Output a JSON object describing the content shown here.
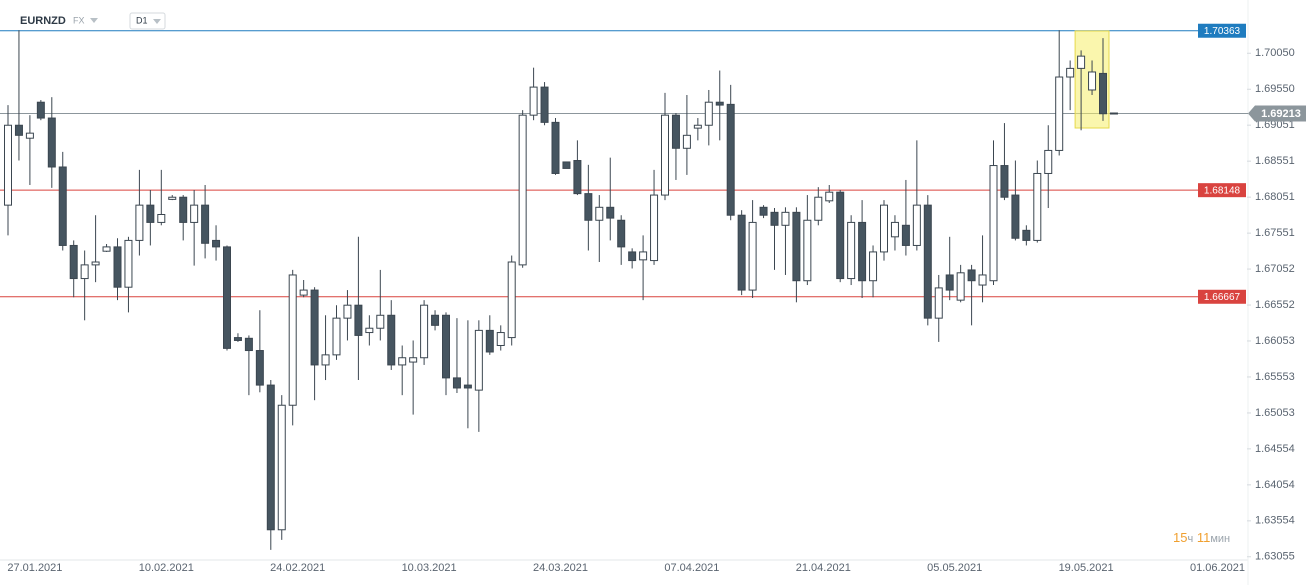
{
  "header": {
    "symbol": "EURNZD",
    "market": "FX",
    "timeframe": "D1"
  },
  "timer": {
    "hours": "15",
    "hours_unit": "ч",
    "minutes": "11",
    "minutes_unit": "мин"
  },
  "chart_data": {
    "type": "candlestick",
    "categories": [
      null,
      null,
      "27.01.2021",
      null,
      null,
      null,
      null,
      null,
      null,
      null,
      null,
      null,
      null,
      null,
      "10.02.2021",
      null,
      null,
      null,
      null,
      null,
      null,
      null,
      null,
      null,
      null,
      null,
      "24.02.2021",
      null,
      null,
      null,
      null,
      null,
      null,
      null,
      null,
      null,
      null,
      null,
      "10.03.2021",
      null,
      null,
      null,
      null,
      null,
      null,
      null,
      null,
      null,
      null,
      null,
      "24.03.2021",
      null,
      null,
      null,
      null,
      null,
      null,
      null,
      null,
      null,
      null,
      null,
      "07.04.2021",
      null,
      null,
      null,
      null,
      null,
      null,
      null,
      null,
      null,
      null,
      null,
      "21.04.2021",
      null,
      null,
      null,
      null,
      null,
      null,
      null,
      null,
      null,
      null,
      null,
      "05.05.2021",
      null,
      null,
      null,
      null,
      null,
      null,
      null,
      null,
      null,
      null,
      null,
      "19.05.2021",
      null,
      null,
      null,
      null,
      null,
      null,
      null,
      null,
      null,
      null,
      null,
      "01.06.2021"
    ],
    "open": [
      1.6794,
      1.6905,
      1.6887,
      1.6937,
      1.6915,
      1.6847,
      1.6738,
      1.6692,
      1.6711,
      1.673,
      1.6736,
      1.668,
      1.6745,
      1.6794,
      1.677,
      1.6802,
      1.6805,
      1.677,
      1.6794,
      1.6745,
      1.6736,
      1.661,
      1.6609,
      1.6592,
      1.6544,
      1.6343,
      1.6516,
      1.6669,
      1.6676,
      1.6572,
      1.6586,
      1.6637,
      1.6655,
      1.6617,
      1.6623,
      1.6641,
      1.6572,
      1.6576,
      1.6582,
      1.6641,
      1.6641,
      1.6554,
      1.6544,
      1.6537,
      1.662,
      1.6599,
      1.661,
      1.6711,
      1.6919,
      1.6958,
      1.6909,
      1.6854,
      1.6856,
      1.681,
      1.6773,
      1.6791,
      1.6773,
      1.6729,
      1.6718,
      1.6717,
      1.6808,
      1.6919,
      1.6873,
      1.6901,
      1.6905,
      1.6937,
      1.6934,
      1.678,
      1.6676,
      1.6791,
      1.6784,
      1.6766,
      1.6784,
      1.6689,
      1.6773,
      1.68,
      1.6812,
      1.6692,
      1.677,
      1.6689,
      1.6729,
      1.675,
      1.6766,
      1.6738,
      1.6794,
      1.6637,
      1.6697,
      1.6662,
      1.6704,
      1.6683,
      1.6689,
      1.6849,
      1.6808,
      1.6759,
      1.6745,
      1.6838,
      1.687,
      1.6972,
      1.6984,
      1.6954,
      1.6977,
      1.6922,
      null,
      null,
      null,
      null,
      null,
      null,
      null,
      null,
      null
    ],
    "high": [
      1.6933,
      1.7037,
      1.6919,
      1.694,
      1.6944,
      1.6868,
      1.6745,
      1.6731,
      1.678,
      1.674,
      1.6748,
      1.675,
      1.6843,
      1.6815,
      1.6843,
      1.6808,
      1.6808,
      1.6815,
      1.6822,
      1.6766,
      1.6738,
      1.6616,
      1.6613,
      1.6648,
      1.6551,
      1.653,
      1.6704,
      1.669,
      1.668,
      1.6641,
      1.6655,
      1.6676,
      1.675,
      1.6641,
      1.6704,
      1.6662,
      1.6599,
      1.6606,
      1.6662,
      1.6648,
      1.6645,
      1.6637,
      1.6634,
      1.6634,
      1.6641,
      1.6627,
      1.6724,
      1.6926,
      1.6985,
      1.6965,
      1.6915,
      1.6854,
      1.6884,
      1.685,
      1.6808,
      1.686,
      1.678,
      1.6734,
      1.6752,
      1.6843,
      1.695,
      1.6922,
      1.6947,
      1.6915,
      1.6954,
      1.6981,
      1.6961,
      1.6787,
      1.6801,
      1.6794,
      1.679,
      1.6791,
      1.6791,
      1.6808,
      1.6819,
      1.6822,
      1.6815,
      1.678,
      1.6801,
      1.6738,
      1.6801,
      1.678,
      1.6829,
      1.6884,
      1.6808,
      1.6697,
      1.675,
      1.6711,
      1.6711,
      1.6752,
      1.6884,
      1.6908,
      1.6856,
      1.6766,
      1.6856,
      1.6905,
      1.7037,
      1.6995,
      1.7009,
      1.6995,
      1.7026,
      1.6922,
      null,
      null,
      null,
      null,
      null,
      null,
      null,
      null,
      null
    ],
    "low": [
      1.6752,
      1.6856,
      1.6822,
      1.6912,
      1.6818,
      1.6731,
      1.6666,
      1.6634,
      1.6687,
      1.6729,
      1.6662,
      1.6645,
      1.6724,
      1.6738,
      1.6766,
      1.6801,
      1.6745,
      1.671,
      1.672,
      1.6717,
      1.6592,
      1.6604,
      1.653,
      1.6534,
      1.6315,
      1.6329,
      1.6488,
      1.6666,
      1.6523,
      1.6551,
      1.6579,
      1.6606,
      1.6551,
      1.6599,
      1.6606,
      1.6565,
      1.653,
      1.6503,
      1.6572,
      1.662,
      1.653,
      1.6533,
      1.6484,
      1.6479,
      1.6586,
      1.6592,
      1.6599,
      1.6707,
      1.6912,
      1.6905,
      1.6836,
      1.6845,
      1.6808,
      1.6731,
      1.6715,
      1.6745,
      1.6711,
      1.6706,
      1.6662,
      1.6711,
      1.6801,
      1.6829,
      1.6836,
      1.6884,
      1.6877,
      1.6884,
      1.6773,
      1.6669,
      1.6665,
      1.6776,
      1.6704,
      1.6697,
      1.6659,
      1.6683,
      1.6766,
      1.6797,
      1.6687,
      1.6683,
      1.6665,
      1.6666,
      1.6717,
      1.6731,
      1.6724,
      1.6731,
      1.6627,
      1.6604,
      1.6662,
      1.6659,
      1.6627,
      1.6659,
      1.6683,
      1.6801,
      1.6745,
      1.6738,
      1.6742,
      1.679,
      1.6863,
      1.6926,
      1.6898,
      1.6947,
      1.6911,
      1.692,
      null,
      null,
      null,
      null,
      null,
      null,
      null,
      null,
      null
    ],
    "close": [
      1.6905,
      1.6891,
      1.6894,
      1.6915,
      1.6847,
      1.6738,
      1.6692,
      1.6711,
      1.6715,
      1.6736,
      1.668,
      1.6745,
      1.6794,
      1.677,
      1.6781,
      1.6805,
      1.677,
      1.6794,
      1.6741,
      1.6736,
      1.6595,
      1.6606,
      1.6592,
      1.6544,
      1.6343,
      1.6516,
      1.6697,
      1.6676,
      1.6572,
      1.6586,
      1.6637,
      1.6655,
      1.6613,
      1.6623,
      1.6641,
      1.6572,
      1.6582,
      1.6582,
      1.6655,
      1.6627,
      1.6554,
      1.654,
      1.654,
      1.662,
      1.659,
      1.6617,
      1.6715,
      1.6919,
      1.6958,
      1.6909,
      1.6838,
      1.6845,
      1.681,
      1.6773,
      1.6791,
      1.6776,
      1.6736,
      1.6717,
      1.6729,
      1.6808,
      1.6919,
      1.6873,
      1.6891,
      1.6905,
      1.6937,
      1.6933,
      1.678,
      1.6676,
      1.677,
      1.678,
      1.6766,
      1.6784,
      1.6689,
      1.6773,
      1.6805,
      1.6812,
      1.6692,
      1.677,
      1.6689,
      1.6729,
      1.6794,
      1.677,
      1.6738,
      1.6794,
      1.6637,
      1.6679,
      1.6676,
      1.67,
      1.6689,
      1.6697,
      1.6849,
      1.6805,
      1.6748,
      1.6745,
      1.6838,
      1.687,
      1.6972,
      1.6984,
      1.7001,
      1.6979,
      1.6921,
      1.6921,
      null,
      null,
      null,
      null,
      null,
      null,
      null,
      null,
      null
    ],
    "up_color": "#ffffff",
    "down_color": "#465560",
    "outline_color": "#3b4650",
    "ylim": [
      1.6301,
      1.7079
    ],
    "yticks": [
      {
        "value": 1.7005,
        "label": "1.70050"
      },
      {
        "value": 1.6955,
        "label": "1.69550"
      },
      1.69051,
      1.68551,
      1.68051,
      1.67551,
      1.67052,
      1.66552,
      1.66053,
      1.65553,
      1.65053,
      1.64554,
      1.64054,
      1.63554,
      1.63055
    ],
    "levels": [
      {
        "value": 1.70363,
        "color": "#1f7cbf"
      },
      {
        "value": 1.68148,
        "color": "#d9433f"
      },
      {
        "value": 1.66667,
        "color": "#d9433f"
      }
    ],
    "current_price": {
      "value": 1.69213,
      "color": "#8c969c"
    }
  }
}
